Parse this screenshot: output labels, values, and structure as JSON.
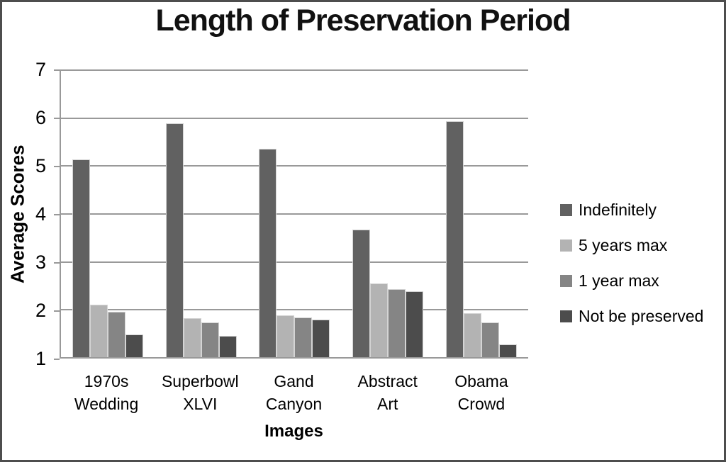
{
  "chart": {
    "title": "Length of Preservation Period",
    "x_axis_title": "Images",
    "y_axis_title": "Average Scores"
  },
  "style": {
    "grid_color": "#999999",
    "axis_color": "#999999",
    "frame_border_color": "#4d4d4d",
    "text_color": "#000000",
    "bar_edge_color": "#d4d4d4"
  },
  "chart_data": {
    "type": "bar",
    "title": "Length of Preservation Period",
    "xlabel": "Images",
    "ylabel": "Average Scores",
    "ylim": [
      1,
      7
    ],
    "yticks": [
      1,
      2,
      3,
      4,
      5,
      6,
      7
    ],
    "grid": true,
    "legend_position": "right",
    "categories": [
      "1970s Wedding",
      "Superbowl XLVI",
      "Gand Canyon",
      "Abstract Art",
      "Obama Crowd"
    ],
    "series": [
      {
        "name": "Indefinitely",
        "color": "#616161",
        "values": [
          5.13,
          5.88,
          5.35,
          3.66,
          5.92
        ]
      },
      {
        "name": "5 years max",
        "color": "#b3b3b3",
        "values": [
          2.1,
          1.82,
          1.87,
          2.53,
          1.91
        ]
      },
      {
        "name": "1 year max",
        "color": "#858585",
        "values": [
          1.95,
          1.73,
          1.83,
          2.42,
          1.73
        ]
      },
      {
        "name": "Not be preserved",
        "color": "#4c4c4c",
        "values": [
          1.48,
          1.45,
          1.79,
          2.38,
          1.26
        ]
      }
    ]
  }
}
